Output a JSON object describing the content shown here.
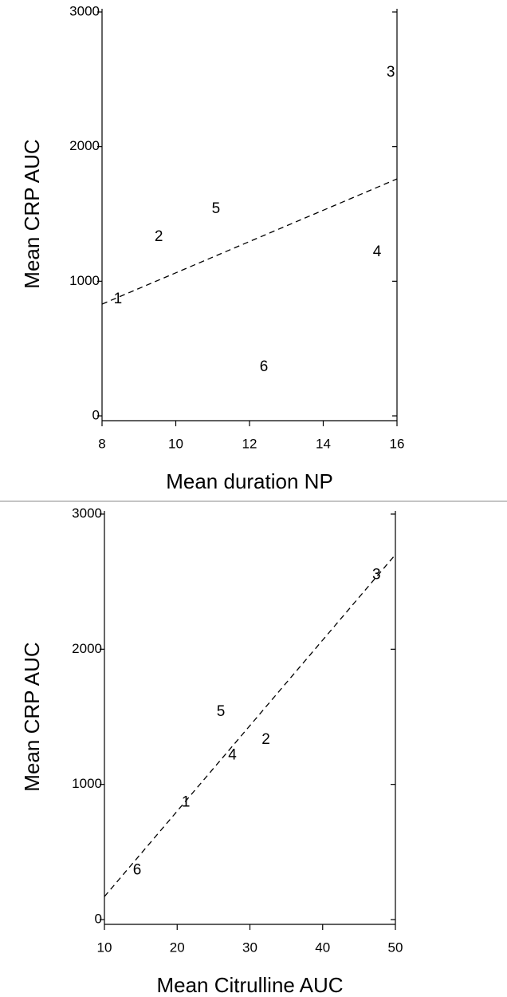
{
  "chart_data": [
    {
      "type": "scatter",
      "x_label": "Mean duration NP",
      "y_label": "Mean CRP AUC",
      "labels": [
        "1",
        "2",
        "3",
        "4",
        "5",
        "6"
      ],
      "x": [
        8.43,
        9.54,
        15.83,
        15.46,
        11.09,
        12.39
      ],
      "y": [
        865,
        1328,
        2549,
        1215,
        1535,
        362
      ],
      "trend_line": {
        "x": [
          8,
          16
        ],
        "y": [
          830,
          1760
        ]
      },
      "xlim": [
        8,
        16
      ],
      "xticks": [
        8,
        10,
        12,
        14,
        16
      ],
      "ylim": [
        0,
        3000
      ],
      "yticks": [
        0,
        1000,
        2000,
        3000
      ],
      "color": "#000000"
    },
    {
      "type": "scatter",
      "x_label": "Mean Citrulline AUC",
      "y_label": "Mean CRP AUC",
      "labels": [
        "1",
        "2",
        "3",
        "4",
        "5",
        "6"
      ],
      "x": [
        21.2,
        32.2,
        47.4,
        27.6,
        26.0,
        14.5
      ],
      "y": [
        865,
        1328,
        2549,
        1215,
        1535,
        362
      ],
      "trend_line": {
        "x": [
          10,
          50
        ],
        "y": [
          170,
          2700
        ]
      },
      "xlim": [
        10,
        50
      ],
      "xticks": [
        10,
        20,
        30,
        40,
        50
      ],
      "ylim": [
        0,
        3000
      ],
      "yticks": [
        0,
        1000,
        2000,
        3000
      ],
      "color": "#000000"
    }
  ]
}
